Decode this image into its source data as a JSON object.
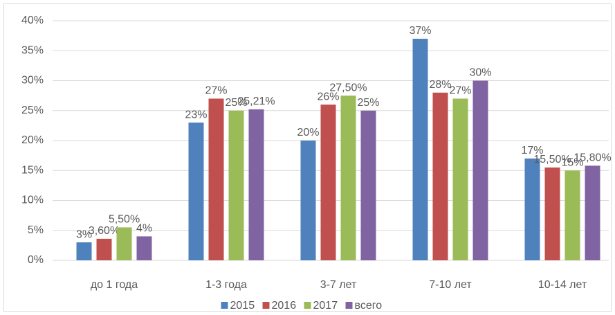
{
  "chart_data": {
    "type": "bar",
    "categories": [
      "до 1 года",
      "1-3 года",
      "3-7 лет",
      "7-10 лет",
      "10-14 лет"
    ],
    "series": [
      {
        "name": "2015",
        "color": "#4f81bd",
        "values": [
          3,
          23,
          20,
          37,
          17
        ],
        "value_labels": [
          "3%",
          "23%",
          "20%",
          "37%",
          "17%"
        ]
      },
      {
        "name": "2016",
        "color": "#c0504d",
        "values": [
          3.6,
          27,
          26,
          28,
          15.5
        ],
        "value_labels": [
          "3,60%",
          "27%",
          "26%",
          "28%",
          "15,50%"
        ]
      },
      {
        "name": "2017",
        "color": "#9bbb59",
        "values": [
          5.5,
          25,
          27.5,
          27,
          15
        ],
        "value_labels": [
          "5,50%",
          "25%",
          "27,50%",
          "27%",
          "15%"
        ]
      },
      {
        "name": "всего",
        "color": "#8064a2",
        "values": [
          4,
          25.21,
          25,
          30,
          15.8
        ],
        "value_labels": [
          "4%",
          "25,21%",
          "25%",
          "30%",
          "15,80%"
        ]
      }
    ],
    "ylim": [
      0,
      40
    ],
    "yticks": [
      {
        "value": 0,
        "label": "0%"
      },
      {
        "value": 5,
        "label": "5%"
      },
      {
        "value": 10,
        "label": "10%"
      },
      {
        "value": 15,
        "label": "15%"
      },
      {
        "value": 20,
        "label": "20%"
      },
      {
        "value": 25,
        "label": "25%"
      },
      {
        "value": 30,
        "label": "30%"
      },
      {
        "value": 35,
        "label": "35%"
      },
      {
        "value": 40,
        "label": "40%"
      }
    ],
    "grid": true,
    "legend": "bottom"
  }
}
